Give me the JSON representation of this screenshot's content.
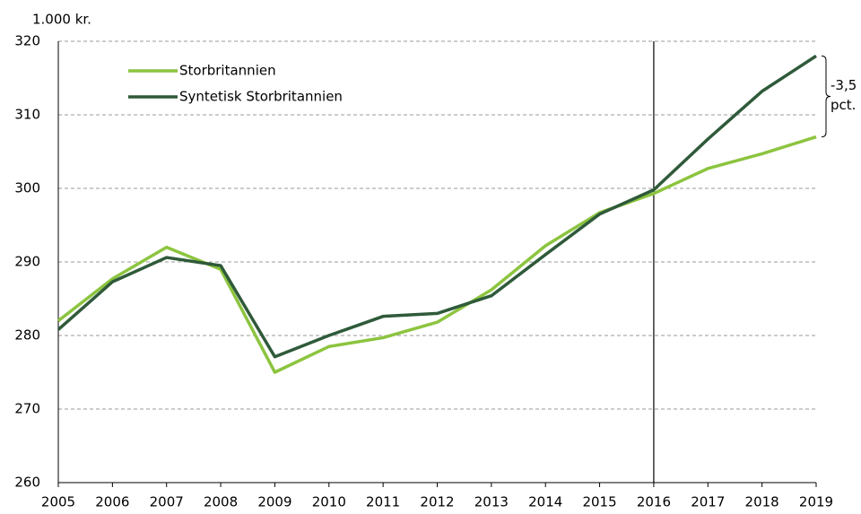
{
  "chart_data": {
    "type": "line",
    "y_label": "1.000 kr.",
    "categories": [
      "2005",
      "2006",
      "2007",
      "2008",
      "2009",
      "2010",
      "2011",
      "2012",
      "2013",
      "2014",
      "2015",
      "2016",
      "2017",
      "2018",
      "2019"
    ],
    "series": [
      {
        "name": "Storbritannien",
        "color": "#8cc43f",
        "values": [
          282,
          287.7,
          292,
          289,
          275,
          278.5,
          279.7,
          281.8,
          286.2,
          292.2,
          296.7,
          299.3,
          302.7,
          304.7,
          307
        ]
      },
      {
        "name": "Syntetisk Storbritannien",
        "color": "#2f5a3a",
        "values": [
          280.8,
          287.3,
          290.6,
          289.5,
          277.1,
          280,
          282.6,
          283,
          285.4,
          291,
          296.5,
          299.8,
          306.7,
          313.2,
          318
        ]
      }
    ],
    "ylim": [
      260,
      320
    ],
    "yticks": [
      260,
      270,
      280,
      290,
      300,
      310,
      320
    ],
    "grid": true,
    "vline": "2016",
    "annotation": [
      "-3,5",
      "pct."
    ],
    "legend": "upper-left"
  }
}
